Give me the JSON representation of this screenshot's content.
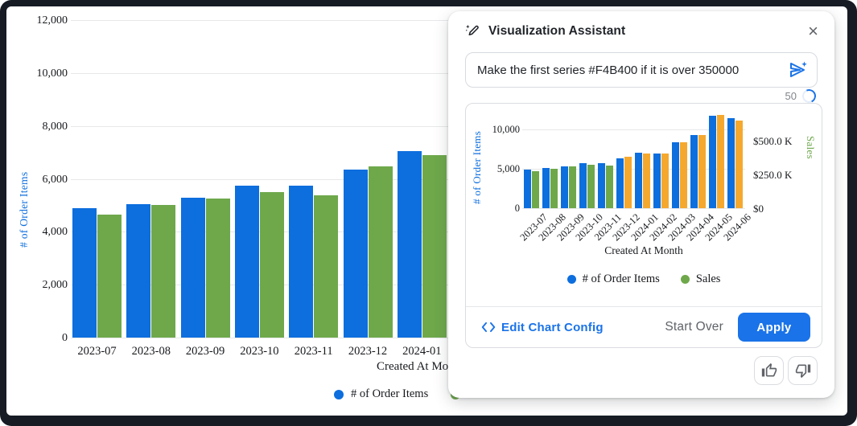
{
  "dialog": {
    "title": "Visualization Assistant",
    "close_label": "×",
    "input": {
      "value": "Make the first series #F4B400 if it is over 350000"
    },
    "counter": "50",
    "footer": {
      "edit_config_label": "Edit Chart Config",
      "start_over_label": "Start Over",
      "apply_label": "Apply"
    }
  },
  "colors": {
    "order_items_blue": "#0d6ede",
    "sales_green": "#6ea84b",
    "highlight_amber": "#f5a82e",
    "accent_blue": "#1a73e8"
  },
  "chart_data": [
    {
      "id": "main-chart",
      "type": "bar",
      "categories": [
        "2023-07",
        "2023-08",
        "2023-09",
        "2023-10",
        "2023-11",
        "2023-12",
        "2024-01",
        "2024-02",
        "2024-03",
        "2024-04",
        "2024-05",
        "2024-06"
      ],
      "xlabel": "Created At Month",
      "grid": true,
      "legend_position": "bottom",
      "left_axis": {
        "label": "# of Order Items",
        "max": 12000,
        "ticks": [
          {
            "value": 0,
            "label": "0"
          },
          {
            "value": 2000,
            "label": "2,000"
          },
          {
            "value": 4000,
            "label": "4,000"
          },
          {
            "value": 6000,
            "label": "6,000"
          },
          {
            "value": 8000,
            "label": "8,000"
          },
          {
            "value": 10000,
            "label": "10,000"
          },
          {
            "value": 12000,
            "label": "12,000"
          }
        ]
      },
      "right_axis": {
        "label": "Sales",
        "max": 700000,
        "ticks": []
      },
      "series": [
        {
          "name": "# of Order Items",
          "axis": "left",
          "color": "#0d6ede",
          "values": [
            4900,
            5050,
            5300,
            5750,
            5750,
            6350,
            7050,
            6900,
            8300,
            9250,
            11700,
            11350
          ]
        },
        {
          "name": "Sales",
          "axis": "right",
          "color": "#6ea84b",
          "values": [
            272000,
            292000,
            306000,
            321000,
            313000,
            378000,
            402000,
            406000,
            484000,
            542000,
            688000,
            648000
          ]
        }
      ]
    },
    {
      "id": "preview-chart",
      "type": "bar",
      "categories": [
        "2023-07",
        "2023-08",
        "2023-09",
        "2023-10",
        "2023-11",
        "2023-12",
        "2024-01",
        "2024-02",
        "2024-03",
        "2024-04",
        "2024-05",
        "2024-06"
      ],
      "xlabel": "Created At Month",
      "grid": true,
      "legend_position": "bottom",
      "left_axis": {
        "label": "# of Order Items",
        "max": 12000,
        "ticks": [
          {
            "value": 0,
            "label": "0"
          },
          {
            "value": 5000,
            "label": "5,000"
          },
          {
            "value": 10000,
            "label": "10,000"
          }
        ]
      },
      "right_axis": {
        "label": "Sales",
        "max": 700000,
        "ticks": [
          {
            "value": 0,
            "label": "$0"
          },
          {
            "value": 250000,
            "label": "$250.0 K"
          },
          {
            "value": 500000,
            "label": "$500.0 K"
          }
        ]
      },
      "series": [
        {
          "name": "# of Order Items",
          "axis": "left",
          "color": "#0d6ede",
          "values": [
            4900,
            5050,
            5300,
            5750,
            5750,
            6350,
            7050,
            6900,
            8300,
            9250,
            11700,
            11350
          ]
        },
        {
          "name": "Sales",
          "axis": "right",
          "color": "#6ea84b",
          "conditional_color": {
            "threshold": 350000,
            "above_color": "#f5a82e",
            "below_color": "#6ea84b"
          },
          "values": [
            272000,
            292000,
            306000,
            321000,
            313000,
            378000,
            402000,
            406000,
            484000,
            542000,
            688000,
            648000
          ]
        }
      ]
    }
  ]
}
